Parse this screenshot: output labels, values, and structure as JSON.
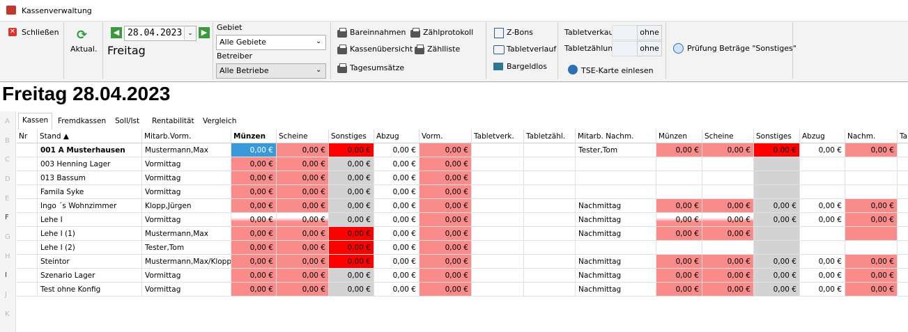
{
  "window": {
    "title": "Kassenverwaltung"
  },
  "toolbar": {
    "close": "Schließen",
    "refresh": "Aktual.",
    "date": "28.04.2023",
    "weekday": "Freitag",
    "gebiet_label": "Gebiet",
    "gebiet_value": "Alle Gebiete",
    "betreiber_label": "Betreiber",
    "betreiber_value": "Alle Betriebe",
    "print_buttons": [
      "Bareinnahmen",
      "Zählprotokoll",
      "Kassenübersicht",
      "Zählliste",
      "Tagesumsätze"
    ],
    "z_bons": "Z-Bons",
    "tabletverlauf": "Tabletverlauf",
    "bargeldlos": "Bargeldlos",
    "tabletverkauf_label": "Tabletverkauf",
    "tabletverkauf_value": "ohne",
    "tabletzaehlung_label": "Tabletzählung",
    "tabletzaehlung_value": "ohne",
    "tse": "TSE-Karte einlesen",
    "pruefung": "Prüfung Beträge \"Sonstiges\""
  },
  "heading": "Freitag 28.04.2023",
  "tabs": [
    "Kassen",
    "Fremdkassen",
    "Soll/Ist",
    "Rentabilität",
    "Vergleich"
  ],
  "index_letters": [
    "A",
    "B",
    "C",
    "D",
    "E",
    "F",
    "G",
    "H",
    "I",
    "J",
    "K"
  ],
  "table": {
    "columns": [
      "Nr",
      "Stand ▲",
      "Mitarb.Vorm.",
      "Münzen",
      "Scheine",
      "Sonstiges",
      "Abzug",
      "Vorm.",
      "Tabletverk.",
      "Tabletzähl.",
      "Mitarb. Nachm.",
      "Münzen",
      "Scheine",
      "Sonstiges",
      "Abzug",
      "Nachm.",
      "Ta"
    ],
    "rows": [
      [
        null,
        "001 A Musterhausen",
        "Mustermann,Max",
        "0,00 €",
        "0,00 €",
        "0,00 €",
        "0,00 €",
        "0,00 €",
        null,
        null,
        "Tester,Tom",
        "0,00 €",
        "0,00 €",
        "0,00 €",
        "0,00 €",
        "0,00 €"
      ],
      [
        null,
        "003 Henning Lager",
        "Vormittag",
        "0,00 €",
        "0,00 €",
        "0,00 €",
        "0,00 €",
        "0,00 €",
        null,
        null,
        null,
        null,
        null,
        null,
        null,
        null
      ],
      [
        null,
        "013 Bassum",
        "Vormittag",
        "0,00 €",
        "0,00 €",
        "0,00 €",
        "0,00 €",
        "0,00 €",
        null,
        null,
        null,
        null,
        null,
        null,
        null,
        null
      ],
      [
        null,
        "Famila Syke",
        "Vormittag",
        "0,00 €",
        "0,00 €",
        "0,00 €",
        "0,00 €",
        "0,00 €",
        null,
        null,
        null,
        null,
        null,
        null,
        null,
        null
      ],
      [
        null,
        "Ingo ´s Wohnzimmer",
        "Klopp,Jürgen",
        "0,00 €",
        "0,00 €",
        "0,00 €",
        "0,00 €",
        "0,00 €",
        null,
        null,
        "Nachmittag",
        "0,00 €",
        "0,00 €",
        "0,00 €",
        "0,00 €",
        "0,00 €"
      ],
      [
        null,
        "Lehe I",
        "Vormittag",
        "0,00 €",
        "0,00 €",
        "0,00 €",
        "0,00 €",
        "0,00 €",
        null,
        null,
        "Nachmittag",
        "0,00 €",
        "0,00 €",
        "0,00 €",
        "0,00 €",
        "0,00 €"
      ],
      [
        null,
        "Lehe I (1)",
        "Mustermann,Max",
        "0,00 €",
        "0,00 €",
        "0,00 €",
        "0,00 €",
        "0,00 €",
        null,
        null,
        "Nachmittag",
        "0,00 €",
        "0,00 €",
        null,
        null,
        null
      ],
      [
        null,
        "Lehe I (2)",
        "Tester,Tom",
        "0,00 €",
        "0,00 €",
        "0,00 €",
        "0,00 €",
        "0,00 €",
        null,
        null,
        null,
        null,
        null,
        null,
        null,
        null
      ],
      [
        null,
        "Steintor",
        "Mustermann,Max/Klopp,J",
        "0,00 €",
        "0,00 €",
        "0,00 €",
        "0,00 €",
        "0,00 €",
        null,
        null,
        "Nachmittag",
        "0,00 €",
        "0,00 €",
        "0,00 €",
        "0,00 €",
        "0,00 €"
      ],
      [
        null,
        "Szenario Lager",
        "Vormittag",
        "0,00 €",
        "0,00 €",
        "0,00 €",
        "0,00 €",
        "0,00 €",
        null,
        null,
        "Nachmittag",
        "0,00 €",
        "0,00 €",
        "0,00 €",
        "0,00 €",
        "0,00 €"
      ],
      [
        null,
        "Test ohne Konfig",
        "Vormittag",
        "0,00 €",
        "0,00 €",
        "0,00 €",
        "0,00 €",
        "0,00 €",
        null,
        null,
        "Nachmittag",
        "0,00 €",
        "0,00 €",
        "0,00 €",
        "0,00 €",
        "0,00 €"
      ]
    ]
  }
}
